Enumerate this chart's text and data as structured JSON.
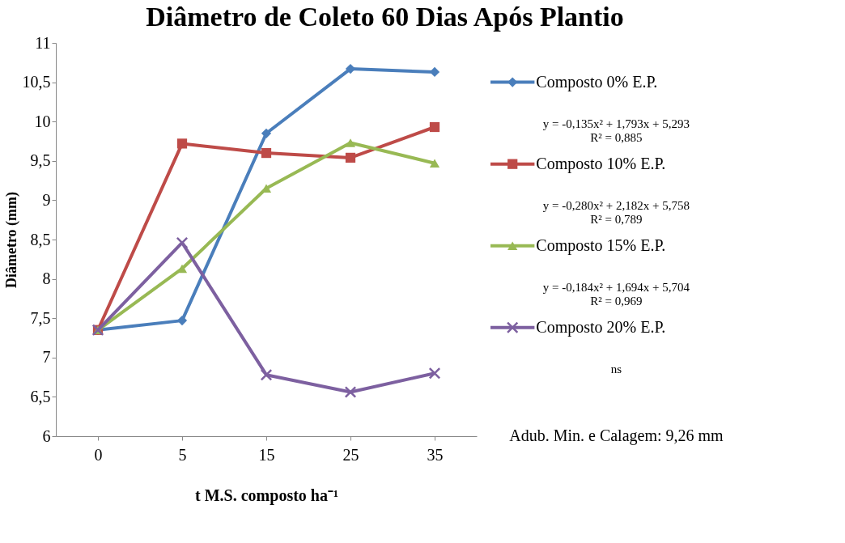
{
  "chart_data": {
    "type": "line",
    "title": "Diâmetro de Coleto 60 Dias Após Plantio",
    "xlabel": "t M.S. composto ha⁻¹",
    "ylabel": "Diâmetro (mm)",
    "categories": [
      "0",
      "5",
      "15",
      "25",
      "35"
    ],
    "series": [
      {
        "name": "Composto 0% E.P.",
        "color": "#4a7ebb",
        "marker": "diamond",
        "values": [
          7.35,
          7.47,
          9.85,
          10.67,
          10.63
        ]
      },
      {
        "name": "Composto 10% E.P.",
        "color": "#be4b48",
        "marker": "square",
        "values": [
          7.35,
          9.72,
          9.6,
          9.54,
          9.93
        ]
      },
      {
        "name": "Composto 15% E.P.",
        "color": "#98b954",
        "marker": "triangle",
        "values": [
          7.35,
          8.13,
          9.15,
          9.73,
          9.47
        ]
      },
      {
        "name": "Composto 20% E.P.",
        "color": "#7d60a0",
        "marker": "cross",
        "values": [
          7.35,
          8.46,
          6.78,
          6.56,
          6.8
        ]
      }
    ],
    "ylim": [
      6,
      11
    ],
    "yticks": [
      6,
      {
        "value": 6.5,
        "label": "6,5"
      },
      7,
      {
        "value": 7.5,
        "label": "7,5"
      },
      8,
      {
        "value": 8.5,
        "label": "8,5"
      },
      9,
      {
        "value": 9.5,
        "label": "9,5"
      },
      10,
      {
        "value": 10.5,
        "label": "10,5"
      },
      11
    ],
    "legend": "right",
    "annotations": [
      "y = -0,135x² + 1,793x + 5,293\nR² = 0,885",
      "y = -0,280x² + 2,182x + 5,758\nR² = 0,789",
      "y = -0,184x² + 1,694x + 5,704\nR² = 0,969",
      "ns",
      "Adub. Min. e Calagem: 9,26 mm"
    ]
  }
}
